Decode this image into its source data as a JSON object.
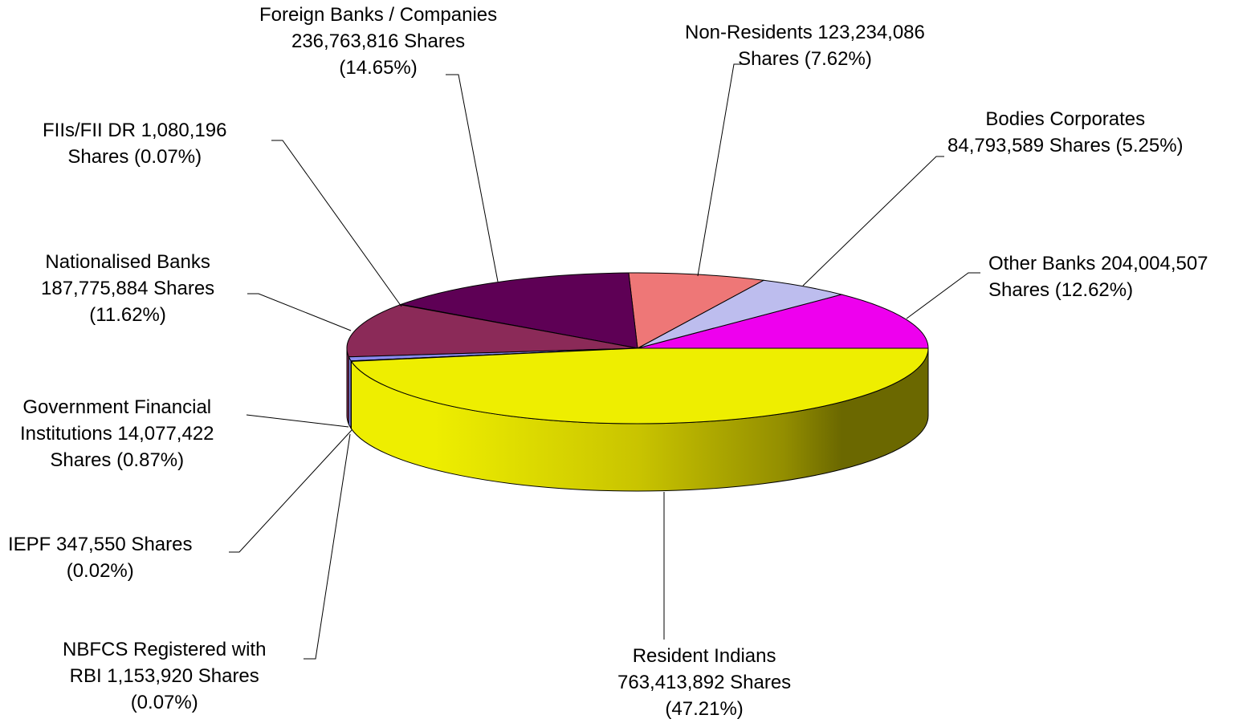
{
  "chart_data": {
    "type": "pie",
    "style": "3d",
    "title": "",
    "start_angle_deg": 0,
    "direction": "counterclockwise",
    "slices": [
      {
        "name": "Other Banks",
        "value": 204004507,
        "percent": 12.62,
        "color": "#EE00EE",
        "label_lines": [
          "Other Banks 204,004,507",
          "Shares (12.62%)"
        ]
      },
      {
        "name": "Bodies Corporates",
        "value": 84793589,
        "percent": 5.25,
        "color": "#BDBDEE",
        "label_lines": [
          "Bodies Corporates",
          "84,793,589 Shares (5.25%)"
        ]
      },
      {
        "name": "Non-Residents",
        "value": 123234086,
        "percent": 7.62,
        "color": "#EE7777",
        "label_lines": [
          "Non-Residents 123,234,086",
          "Shares (7.62%)"
        ]
      },
      {
        "name": "Foreign Banks / Companies",
        "value": 236763816,
        "percent": 14.65,
        "color": "#5E0055",
        "label_lines": [
          "Foreign Banks / Companies",
          "236,763,816 Shares",
          "(14.65%)"
        ]
      },
      {
        "name": "FIIs/FII DR",
        "value": 1080196,
        "percent": 0.07,
        "color": "#3A3A8C",
        "label_lines": [
          "FIIs/FII DR 1,080,196",
          "Shares (0.07%)"
        ]
      },
      {
        "name": "Nationalised Banks",
        "value": 187775884,
        "percent": 11.62,
        "color": "#8B2A58",
        "label_lines": [
          "Nationalised Banks",
          "187,775,884 Shares",
          "(11.62%)"
        ]
      },
      {
        "name": "Government Financial Institutions",
        "value": 14077422,
        "percent": 0.87,
        "color": "#8A8AEE",
        "label_lines": [
          "Government Financial",
          "Institutions 14,077,422",
          "Shares (0.87%)"
        ]
      },
      {
        "name": "IEPF",
        "value": 347550,
        "percent": 0.02,
        "color": "#D0D0F0",
        "label_lines": [
          "IEPF 347,550 Shares",
          "(0.02%)"
        ]
      },
      {
        "name": "NBFCS Registered with RBI",
        "value": 1153920,
        "percent": 0.07,
        "color": "#A0C0D0",
        "label_lines": [
          "NBFCS Registered with",
          "RBI 1,153,920 Shares",
          "(0.07%)"
        ]
      },
      {
        "name": "Resident Indians",
        "value": 763413892,
        "percent": 47.21,
        "color": "#EEEE00",
        "label_lines": [
          "Resident Indians",
          "763,413,892 Shares",
          "(47.21%)"
        ]
      }
    ],
    "legend": "none"
  }
}
